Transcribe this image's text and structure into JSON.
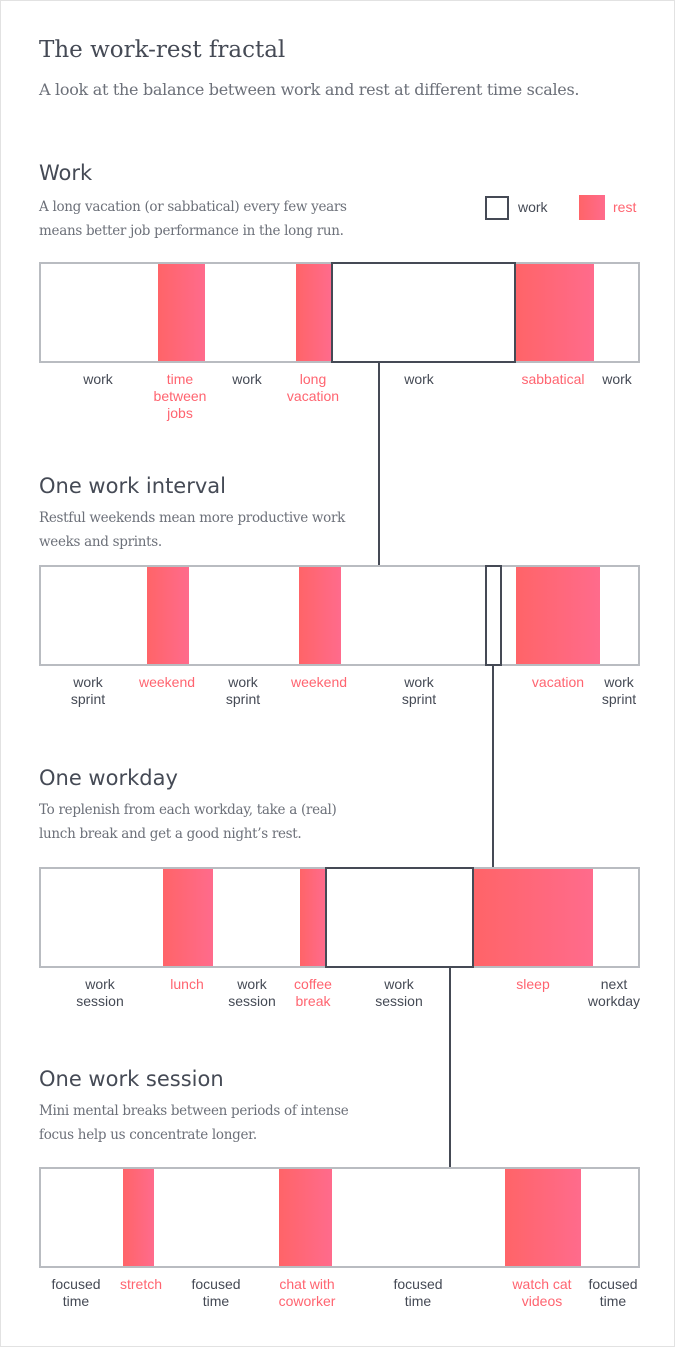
{
  "title": "The work-rest fractal",
  "subtitle": "A look at the balance between work and rest at different time scales.",
  "colors": {
    "rest": "#ff6470",
    "work_outline": "#454a55",
    "bar_border": "#b9bcc1"
  },
  "legend": {
    "work": "work",
    "rest": "rest"
  },
  "sections": [
    {
      "heading": "Work",
      "description": "A long vacation (or sabbatical) every few years means better job performance in the long run.",
      "segments": [
        {
          "label": "work",
          "type": "work"
        },
        {
          "label": "time\nbetween\njobs",
          "type": "rest"
        },
        {
          "label": "work",
          "type": "work"
        },
        {
          "label": "long\nvacation",
          "type": "rest"
        },
        {
          "label": "work",
          "type": "work"
        },
        {
          "label": "sabbatical",
          "type": "rest"
        },
        {
          "label": "work",
          "type": "work"
        }
      ]
    },
    {
      "heading": "One work interval",
      "description": "Restful weekends mean more productive work weeks and sprints.",
      "segments": [
        {
          "label": "work\nsprint",
          "type": "work"
        },
        {
          "label": "weekend",
          "type": "rest"
        },
        {
          "label": "work\nsprint",
          "type": "work"
        },
        {
          "label": "weekend",
          "type": "rest"
        },
        {
          "label": "work\nsprint",
          "type": "work"
        },
        {
          "label": "vacation",
          "type": "rest"
        },
        {
          "label": "work\nsprint",
          "type": "work"
        }
      ]
    },
    {
      "heading": "One workday",
      "description": "To replenish from each workday, take a (real) lunch break and get a good night’s rest.",
      "segments": [
        {
          "label": "work\nsession",
          "type": "work"
        },
        {
          "label": "lunch",
          "type": "rest"
        },
        {
          "label": "work\nsession",
          "type": "work"
        },
        {
          "label": "coffee\nbreak",
          "type": "rest"
        },
        {
          "label": "work\nsession",
          "type": "work"
        },
        {
          "label": "sleep",
          "type": "rest"
        },
        {
          "label": "next\nworkday",
          "type": "work"
        }
      ]
    },
    {
      "heading": "One work session",
      "description": "Mini mental breaks between periods of intense focus help us concentrate longer.",
      "segments": [
        {
          "label": "focused\ntime",
          "type": "work"
        },
        {
          "label": "stretch",
          "type": "rest"
        },
        {
          "label": "focused\ntime",
          "type": "work"
        },
        {
          "label": "chat with\ncoworker",
          "type": "rest"
        },
        {
          "label": "focused\ntime",
          "type": "work"
        },
        {
          "label": "watch cat\nvideos",
          "type": "rest"
        },
        {
          "label": "focused\ntime",
          "type": "work"
        }
      ]
    }
  ]
}
